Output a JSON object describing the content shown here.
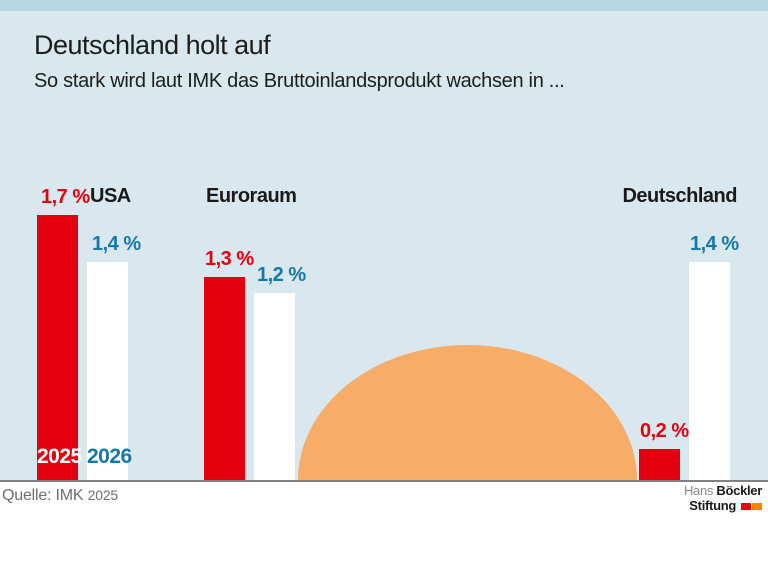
{
  "title": "Deutschland holt auf",
  "subtitle": "So stark wird laut IMK das Bruttoinlandsprodukt wachsen in ...",
  "chart_data": {
    "type": "bar",
    "categories": [
      "USA",
      "Euroraum",
      "Deutschland"
    ],
    "series": [
      {
        "name": "2025",
        "color": "#e3000f",
        "values": [
          1.7,
          1.3,
          0.2
        ],
        "labels": [
          "1,7 %",
          "1,3 %",
          "0,2 %"
        ]
      },
      {
        "name": "2026",
        "color": "#ffffff",
        "values": [
          1.4,
          1.2,
          1.4
        ],
        "labels": [
          "1,4 %",
          "1,2 %",
          "1,4 %"
        ]
      }
    ],
    "unit": "%",
    "ylim": [
      0,
      1.8
    ],
    "grid": false,
    "legend": "year labels 2025/2026 printed inside the first pair of bars",
    "decoration": "orange semicircle (rising sun) sitting on the baseline"
  },
  "year_labels": {
    "series_2025": "2025",
    "series_2026": "2026"
  },
  "footer": {
    "source_prefix": "Quelle: IMK ",
    "source_year": "2025"
  },
  "logo": {
    "line1_regular": "Hans ",
    "line1_bold": "Böckler",
    "line2_bold": "Stiftung"
  },
  "colors": {
    "top_band": "#b9d6e3",
    "chart_background": "#d9e8ee",
    "bar_2025": "#e3000f",
    "bar_2026": "#ffffff",
    "value_label_2025": "#e3000f",
    "value_label_2026": "#1478a8",
    "sun": "#f7ac67",
    "baseline": "#808080",
    "logo_red": "#e30613",
    "logo_orange": "#f18700"
  }
}
